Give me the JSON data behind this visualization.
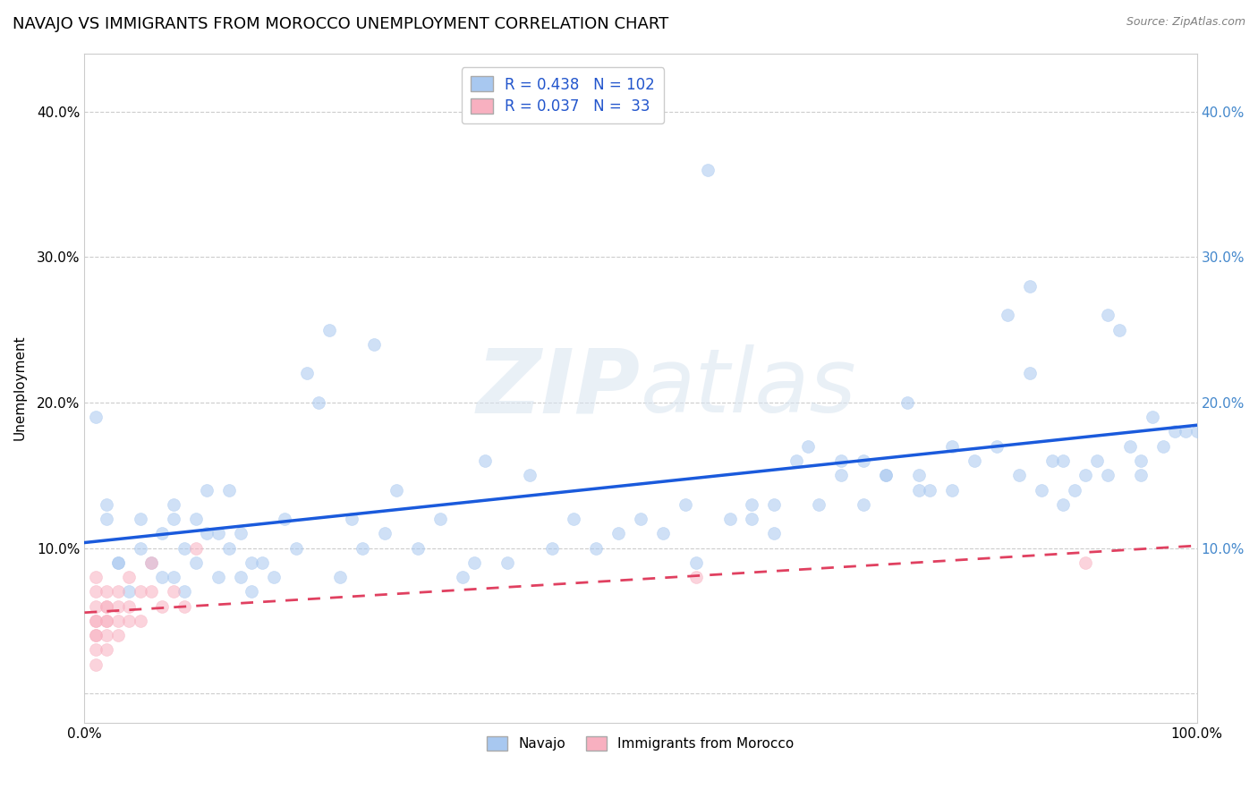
{
  "title": "NAVAJO VS IMMIGRANTS FROM MOROCCO UNEMPLOYMENT CORRELATION CHART",
  "source": "Source: ZipAtlas.com",
  "ylabel": "Unemployment",
  "watermark": "ZIPatlas",
  "navajo_R": 0.438,
  "navajo_N": 102,
  "morocco_R": 0.037,
  "morocco_N": 33,
  "navajo_color": "#a8c8f0",
  "navajo_line_color": "#1a5adc",
  "morocco_color": "#f8b0c0",
  "morocco_line_color": "#e04060",
  "navajo_scatter_x": [
    0.01,
    0.02,
    0.02,
    0.03,
    0.04,
    0.05,
    0.06,
    0.07,
    0.07,
    0.08,
    0.08,
    0.09,
    0.09,
    0.1,
    0.1,
    0.11,
    0.11,
    0.12,
    0.12,
    0.13,
    0.13,
    0.14,
    0.14,
    0.15,
    0.16,
    0.17,
    0.18,
    0.19,
    0.2,
    0.21,
    0.22,
    0.23,
    0.24,
    0.25,
    0.26,
    0.27,
    0.28,
    0.3,
    0.32,
    0.34,
    0.36,
    0.38,
    0.4,
    0.42,
    0.44,
    0.46,
    0.48,
    0.5,
    0.52,
    0.54,
    0.56,
    0.58,
    0.6,
    0.62,
    0.64,
    0.65,
    0.66,
    0.68,
    0.7,
    0.72,
    0.74,
    0.75,
    0.76,
    0.78,
    0.8,
    0.82,
    0.84,
    0.85,
    0.86,
    0.87,
    0.88,
    0.89,
    0.9,
    0.91,
    0.92,
    0.93,
    0.94,
    0.95,
    0.96,
    0.97,
    0.98,
    0.99,
    1.0,
    0.03,
    0.05,
    0.08,
    0.15,
    0.35,
    0.55,
    0.62,
    0.7,
    0.78,
    0.83,
    0.88,
    0.92,
    0.5,
    0.68,
    0.75,
    0.85,
    0.95,
    0.6,
    0.72
  ],
  "navajo_scatter_y": [
    0.19,
    0.13,
    0.12,
    0.09,
    0.07,
    0.12,
    0.09,
    0.08,
    0.11,
    0.08,
    0.13,
    0.07,
    0.1,
    0.09,
    0.12,
    0.11,
    0.14,
    0.08,
    0.11,
    0.1,
    0.14,
    0.08,
    0.11,
    0.07,
    0.09,
    0.08,
    0.12,
    0.1,
    0.22,
    0.2,
    0.25,
    0.08,
    0.12,
    0.1,
    0.24,
    0.11,
    0.14,
    0.1,
    0.12,
    0.08,
    0.16,
    0.09,
    0.15,
    0.1,
    0.12,
    0.1,
    0.11,
    0.12,
    0.11,
    0.13,
    0.36,
    0.12,
    0.12,
    0.13,
    0.16,
    0.17,
    0.13,
    0.15,
    0.16,
    0.15,
    0.2,
    0.15,
    0.14,
    0.17,
    0.16,
    0.17,
    0.15,
    0.22,
    0.14,
    0.16,
    0.16,
    0.14,
    0.15,
    0.16,
    0.26,
    0.25,
    0.17,
    0.15,
    0.19,
    0.17,
    0.18,
    0.18,
    0.18,
    0.09,
    0.1,
    0.12,
    0.09,
    0.09,
    0.09,
    0.11,
    0.13,
    0.14,
    0.26,
    0.13,
    0.15,
    0.42,
    0.16,
    0.14,
    0.28,
    0.16,
    0.13,
    0.15
  ],
  "morocco_scatter_x": [
    0.01,
    0.01,
    0.01,
    0.01,
    0.01,
    0.01,
    0.01,
    0.01,
    0.01,
    0.02,
    0.02,
    0.02,
    0.02,
    0.02,
    0.02,
    0.02,
    0.03,
    0.03,
    0.03,
    0.03,
    0.04,
    0.04,
    0.04,
    0.05,
    0.05,
    0.06,
    0.06,
    0.07,
    0.08,
    0.09,
    0.1,
    0.55,
    0.9
  ],
  "morocco_scatter_y": [
    0.04,
    0.05,
    0.06,
    0.07,
    0.03,
    0.02,
    0.08,
    0.05,
    0.04,
    0.05,
    0.06,
    0.04,
    0.07,
    0.05,
    0.03,
    0.06,
    0.07,
    0.05,
    0.04,
    0.06,
    0.08,
    0.05,
    0.06,
    0.05,
    0.07,
    0.07,
    0.09,
    0.06,
    0.07,
    0.06,
    0.1,
    0.08,
    0.09
  ],
  "xlim": [
    0.0,
    1.0
  ],
  "ylim": [
    -0.02,
    0.44
  ],
  "xticks": [
    0.0,
    1.0
  ],
  "xticklabels": [
    "0.0%",
    "100.0%"
  ],
  "yticks": [
    0.0,
    0.1,
    0.2,
    0.3,
    0.4
  ],
  "yticklabels": [
    "",
    "10.0%",
    "20.0%",
    "30.0%",
    "40.0%"
  ],
  "right_yticks": [
    0.1,
    0.2,
    0.3,
    0.4
  ],
  "right_yticklabels": [
    "10.0%",
    "20.0%",
    "30.0%",
    "40.0%"
  ],
  "grid_color": "#cccccc",
  "background_color": "#ffffff",
  "scatter_size": 100,
  "scatter_alpha": 0.55,
  "title_fontsize": 13,
  "axis_fontsize": 11,
  "tick_fontsize": 11,
  "right_tick_color": "#4488cc"
}
